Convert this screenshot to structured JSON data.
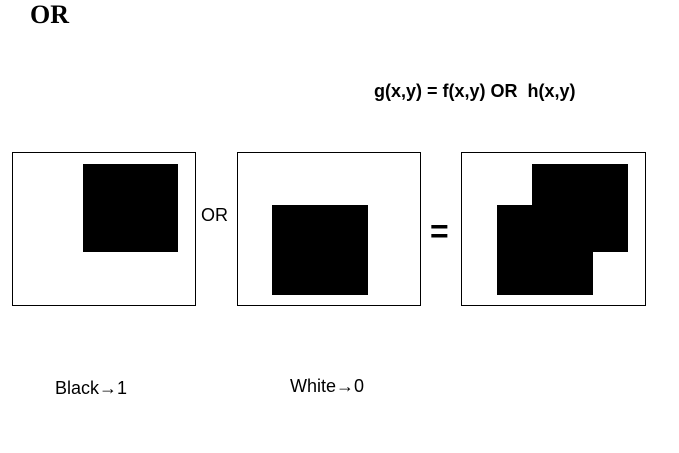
{
  "title": "OR",
  "formula": "g(x,y) = f(x,y) OR  h(x,y)",
  "operator_label": "OR",
  "equals_sign": "=",
  "legend": {
    "black": "Black→1",
    "white": "White→0"
  }
}
